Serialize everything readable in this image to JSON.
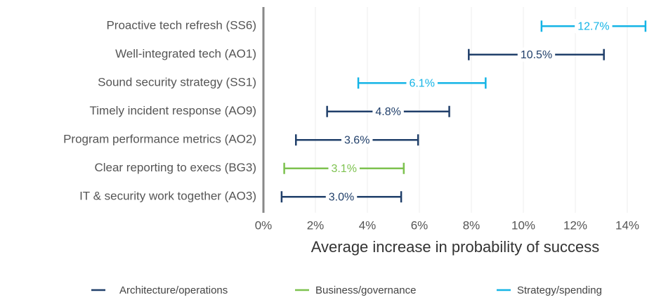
{
  "chart_data": {
    "type": "errorbar",
    "x_label": "Average increase in probability of success",
    "categories": [
      "Proactive tech refresh (SS6)",
      "Well-integrated tech (AO1)",
      "Sound security strategy (SS1)",
      "Timely incident response (AO9)",
      "Program performance metrics (AO2)",
      "Clear reporting to execs (BG3)",
      "IT & security work together (AO3)"
    ],
    "series": [
      {
        "name": "Architecture/operations",
        "color": "#203f6a",
        "values": [
          null,
          10.5,
          null,
          4.8,
          3.6,
          null,
          3.0
        ],
        "value_labels": [
          null,
          "10.5%",
          null,
          "4.8%",
          "3.6%",
          null,
          "3.0%"
        ],
        "errors": [
          null,
          2.6,
          null,
          2.35,
          2.35,
          null,
          2.3
        ]
      },
      {
        "name": "Business/governance",
        "color": "#7dc24f",
        "values": [
          null,
          null,
          null,
          null,
          null,
          3.1,
          null
        ],
        "value_labels": [
          null,
          null,
          null,
          null,
          null,
          "3.1%",
          null
        ],
        "errors": [
          null,
          null,
          null,
          null,
          null,
          2.3,
          null
        ]
      },
      {
        "name": "Strategy/spending",
        "color": "#14b4e6",
        "values": [
          12.7,
          null,
          6.1,
          null,
          null,
          null,
          null
        ],
        "value_labels": [
          "12.7%",
          null,
          "6.1%",
          null,
          null,
          null,
          null
        ],
        "errors": [
          2.0,
          null,
          2.45,
          null,
          null,
          null,
          null
        ]
      }
    ],
    "xlim": [
      0,
      15
    ],
    "xticks": [
      {
        "value": 0,
        "label": "0%"
      },
      {
        "value": 2,
        "label": "2%"
      },
      {
        "value": 4,
        "label": "4%"
      },
      {
        "value": 6,
        "label": "6%"
      },
      {
        "value": 8,
        "label": "8%"
      },
      {
        "value": 10,
        "label": "10%"
      },
      {
        "value": 12,
        "label": "12%"
      },
      {
        "value": 14,
        "label": "14%"
      }
    ],
    "grid": true,
    "legend": "bottom"
  }
}
